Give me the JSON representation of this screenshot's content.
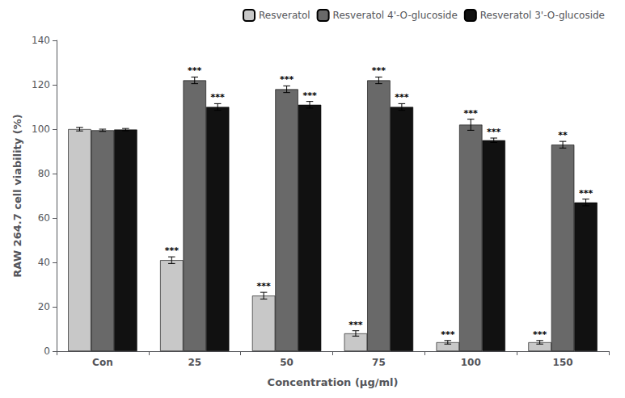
{
  "chart_data": {
    "type": "bar",
    "xlabel": "Concentration (μg/ml)",
    "ylabel": "RAW 264.7 cell viability (%)",
    "categories": [
      "Con",
      "25",
      "50",
      "75",
      "100",
      "150"
    ],
    "series": [
      {
        "name": "Resveratol",
        "color": "#c8c8c8",
        "values": [
          100,
          41,
          25,
          8,
          4,
          4
        ],
        "errors": [
          0.8,
          1.5,
          1.5,
          1.2,
          0.8,
          0.8
        ],
        "significance": [
          null,
          "***",
          "***",
          "***",
          "***",
          "***"
        ]
      },
      {
        "name": "Resveratol 4'-O-glucoside",
        "color": "#696969",
        "values": [
          99.5,
          122,
          118,
          122,
          102,
          93
        ],
        "errors": [
          0.5,
          1.5,
          1.5,
          1.5,
          2.5,
          1.5
        ],
        "significance": [
          null,
          "***",
          "***",
          "***",
          "***",
          "**"
        ]
      },
      {
        "name": "Resveratol 3'-O-glucoside",
        "color": "#111111",
        "values": [
          99.8,
          110,
          111,
          110,
          95,
          67
        ],
        "errors": [
          0.5,
          1.5,
          1.5,
          1.5,
          1.0,
          1.5
        ],
        "significance": [
          null,
          "***",
          "***",
          "***",
          "***",
          "***"
        ]
      }
    ],
    "ylim": [
      0,
      140
    ],
    "yticks": [
      0,
      20,
      40,
      60,
      80,
      100,
      120,
      140
    ],
    "grid": false,
    "legend": "upper right"
  }
}
